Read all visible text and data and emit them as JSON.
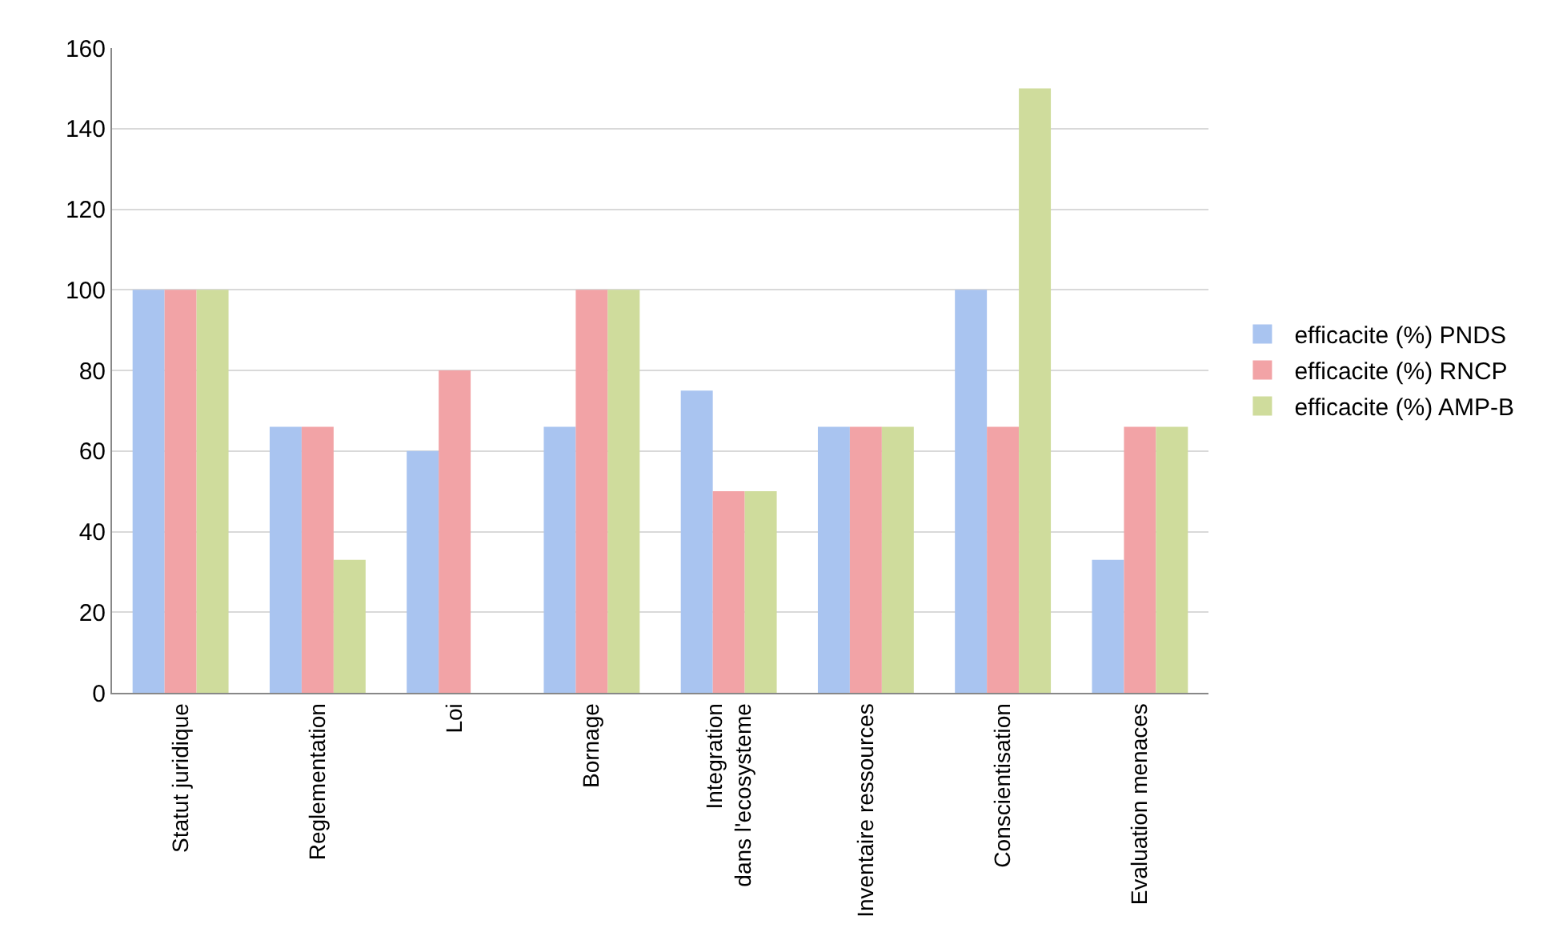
{
  "chart_data": {
    "type": "bar",
    "categories": [
      "Statut juridique",
      "Reglementation",
      "Loi",
      "Bornage",
      "Integration  dans l'ecosysteme",
      "Inventaire ressources",
      "Conscientisation",
      "Evaluation menaces"
    ],
    "series": [
      {
        "name": "efficacite (%) PNDS",
        "color": "#a9c4f0",
        "values": [
          100,
          66,
          60,
          66,
          75,
          66,
          100,
          33
        ]
      },
      {
        "name": "efficacite (%) RNCP",
        "color": "#f2a3a6",
        "values": [
          100,
          66,
          80,
          100,
          50,
          66,
          66,
          66
        ]
      },
      {
        "name": "efficacite (%) AMP-B",
        "color": "#cfdc9c",
        "values": [
          100,
          33,
          0,
          100,
          50,
          66,
          150,
          66
        ]
      }
    ],
    "ylim": [
      0,
      160
    ],
    "yticks": [
      0,
      20,
      40,
      60,
      80,
      100,
      120,
      140,
      160
    ],
    "grid": "y",
    "legend": "right"
  }
}
